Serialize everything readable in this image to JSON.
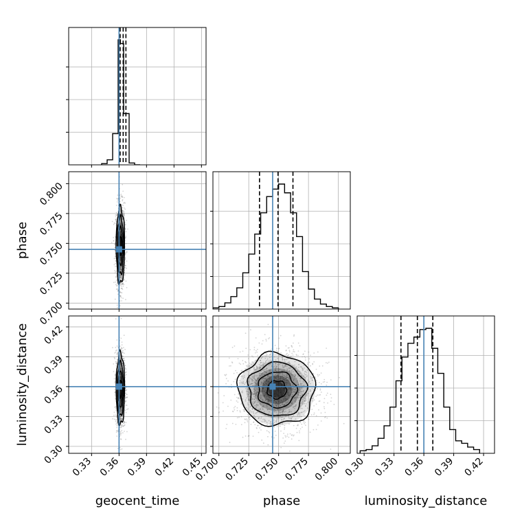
{
  "chart_data": {
    "type": "corner",
    "parameters": [
      {
        "name": "geocent_time",
        "label": "geocent_time",
        "ticks": [
          0.33,
          0.36,
          0.39,
          0.42,
          0.45
        ],
        "tick_labels": [
          "0.33",
          "0.36",
          "0.39",
          "0.42",
          "0.45"
        ],
        "range": [
          0.305,
          0.455
        ],
        "truth": 0.36,
        "quantiles": [
          0.3612,
          0.3645,
          0.3675
        ]
      },
      {
        "name": "phase",
        "label": "phase",
        "ticks": [
          0.7,
          0.725,
          0.75,
          0.775,
          0.8
        ],
        "tick_labels": [
          "0.700",
          "0.725",
          "0.750",
          "0.775",
          "0.800"
        ],
        "range": [
          0.695,
          0.81
        ],
        "truth": 0.745,
        "quantiles": [
          0.734,
          0.7495,
          0.762
        ]
      },
      {
        "name": "luminosity_distance",
        "label": "luminosity_distance",
        "ticks": [
          0.3,
          0.33,
          0.36,
          0.39,
          0.42
        ],
        "tick_labels": [
          "0.30",
          "0.33",
          "0.36",
          "0.39",
          "0.42"
        ],
        "range": [
          0.293,
          0.431
        ],
        "truth": 0.36,
        "quantiles": [
          0.337,
          0.3535,
          0.369
        ]
      }
    ],
    "histograms": [
      {
        "param": "geocent_time",
        "bin_edges": [
          0.341,
          0.347,
          0.353,
          0.359,
          0.3615,
          0.365,
          0.371,
          0.377,
          0.383
        ],
        "counts": [
          0.01,
          0.04,
          0.25,
          1.0,
          0.97,
          0.41,
          0.015,
          0.0
        ]
      },
      {
        "param": "phase",
        "bin_edges": [
          0.695,
          0.7,
          0.705,
          0.71,
          0.715,
          0.72,
          0.725,
          0.73,
          0.735,
          0.74,
          0.745,
          0.75,
          0.755,
          0.76,
          0.765,
          0.77,
          0.775,
          0.78,
          0.785,
          0.79,
          0.795,
          0.8
        ],
        "counts": [
          0.01,
          0.02,
          0.05,
          0.1,
          0.17,
          0.29,
          0.44,
          0.6,
          0.77,
          0.9,
          0.96,
          1.0,
          0.93,
          0.77,
          0.58,
          0.3,
          0.16,
          0.08,
          0.04,
          0.02,
          0.01
        ]
      },
      {
        "param": "luminosity_distance",
        "bin_edges": [
          0.296,
          0.302,
          0.308,
          0.314,
          0.32,
          0.326,
          0.332,
          0.338,
          0.344,
          0.35,
          0.356,
          0.362,
          0.368,
          0.374,
          0.38,
          0.386,
          0.392,
          0.398,
          0.404,
          0.41,
          0.416
        ],
        "counts": [
          0.02,
          0.03,
          0.06,
          0.12,
          0.22,
          0.37,
          0.58,
          0.77,
          0.88,
          0.93,
          0.99,
          1.0,
          0.84,
          0.64,
          0.37,
          0.19,
          0.1,
          0.08,
          0.05,
          0.03
        ]
      }
    ],
    "joint": [
      {
        "x": "geocent_time",
        "y": "phase",
        "mean": [
          0.3615,
          0.748
        ],
        "sd": [
          0.0023,
          0.016
        ],
        "n_points": 1300
      },
      {
        "x": "geocent_time",
        "y": "luminosity_distance",
        "mean": [
          0.3615,
          0.3575
        ],
        "sd": [
          0.0023,
          0.018
        ],
        "n_points": 1300
      },
      {
        "x": "phase",
        "y": "luminosity_distance",
        "mean": [
          0.7485,
          0.357
        ],
        "sd": [
          0.016,
          0.018
        ],
        "n_points": 1800
      }
    ],
    "colors": {
      "truth": "#4682b4",
      "hist": "#000000",
      "grid": "#b0b0b0",
      "scatter": "#808080"
    },
    "grid": true
  }
}
